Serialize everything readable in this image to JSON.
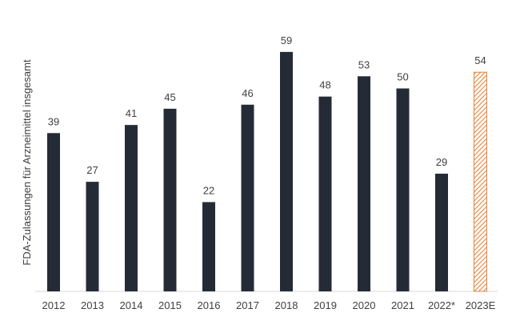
{
  "chart_data": {
    "type": "bar",
    "ylabel": "FDA-Zulassungen für Arzneimittel insgesamt",
    "categories": [
      "2012",
      "2013",
      "2014",
      "2015",
      "2016",
      "2017",
      "2018",
      "2019",
      "2020",
      "2021",
      "2022*",
      "2023E"
    ],
    "values": [
      39,
      27,
      41,
      45,
      22,
      46,
      59,
      48,
      53,
      50,
      29,
      54
    ],
    "estimated_categories": [
      "2023E"
    ],
    "ylim": [
      0,
      64
    ],
    "grid": false,
    "legend": "none",
    "colors": {
      "bar": "#252b36",
      "estimate_stroke": "#e8843a",
      "estimate_hatch": "#e8843a",
      "axis": "#d9d9d9",
      "text": "#404040"
    }
  }
}
